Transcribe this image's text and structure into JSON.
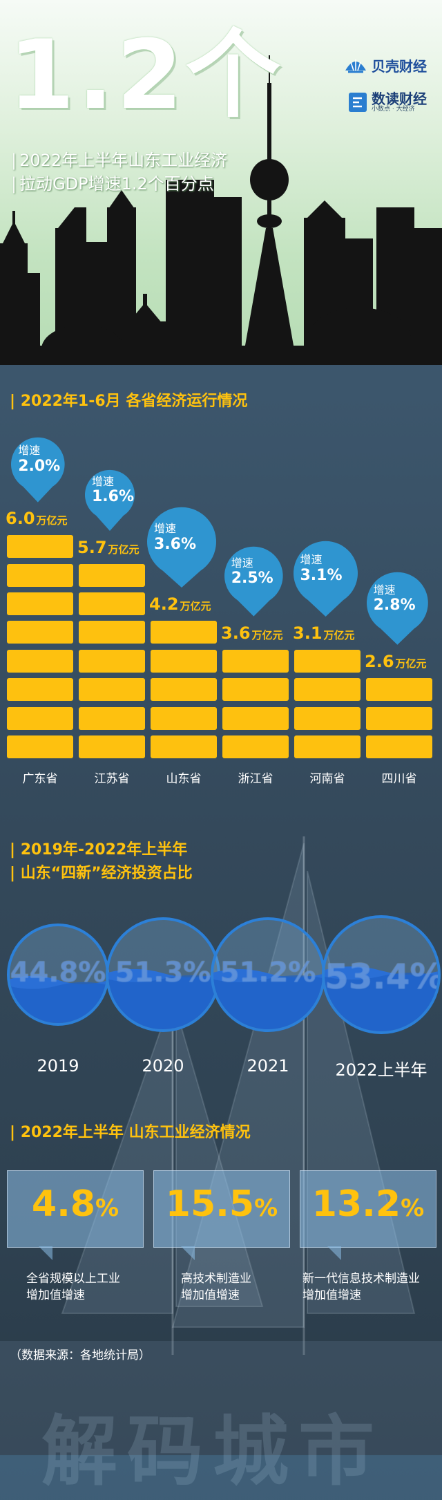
{
  "header": {
    "big_number": "1.2个",
    "subtitle_line1": "2022年上半年山东工业经济",
    "subtitle_line2": "拉动GDP增速1.2个百分点",
    "brand1": "贝壳财经",
    "brand2": "数读财经",
    "brand2_tagline": "小数点 · 大经济"
  },
  "sections": {
    "bar_title": "2022年1-6月 各省经济运行情况",
    "circle_title_line1": "2019年-2022年上半年",
    "circle_title_line2": "山东“四新”经济投资占比",
    "box_title": "2022年上半年 山东工业经济情况"
  },
  "chart_data": [
    {
      "type": "bar",
      "title": "2022年1-6月 各省经济运行情况",
      "categories": [
        "广东省",
        "江苏省",
        "山东省",
        "浙江省",
        "河南省",
        "四川省"
      ],
      "series": [
        {
          "name": "GDP",
          "unit": "万亿元",
          "values": [
            6.0,
            5.7,
            4.2,
            3.6,
            3.1,
            2.6
          ],
          "labels": [
            "6.0",
            "5.7",
            "4.2",
            "3.6",
            "3.1",
            "2.6"
          ]
        },
        {
          "name": "增速",
          "unit": "%",
          "values": [
            2.0,
            1.6,
            3.6,
            2.5,
            3.1,
            2.8
          ],
          "labels": [
            "2.0%",
            "1.6%",
            "3.6%",
            "2.5%",
            "3.1%",
            "2.8%"
          ]
        }
      ],
      "unit_label": "万亿元",
      "growth_label": "增速"
    },
    {
      "type": "bar",
      "title": "2019年-2022年上半年 山东“四新”经济投资占比",
      "categories": [
        "2019",
        "2020",
        "2021",
        "2022上半年"
      ],
      "values": [
        44.8,
        51.3,
        51.2,
        53.4
      ],
      "labels": [
        "44.8%",
        "51.3%",
        "51.2%",
        "53.4%"
      ],
      "unit": "%"
    }
  ],
  "indicators": [
    {
      "number": "4.8",
      "suffix": "%",
      "caption_line1": "全省规模以上工业",
      "caption_line2": "增加值增速"
    },
    {
      "number": "15.5",
      "suffix": "%",
      "caption_line1": "高技术制造业",
      "caption_line2": "增加值增速"
    },
    {
      "number": "13.2",
      "suffix": "%",
      "caption_line1": "新一代信息技术制造业",
      "caption_line2": "增加值增速"
    }
  ],
  "source": "（数据来源：各地统计局）",
  "footer_art": "解码城市",
  "colors": {
    "accent": "#ffc20e",
    "bar": "#fec10f",
    "pin": "#2f95d0",
    "water": "#2a6fd6"
  }
}
